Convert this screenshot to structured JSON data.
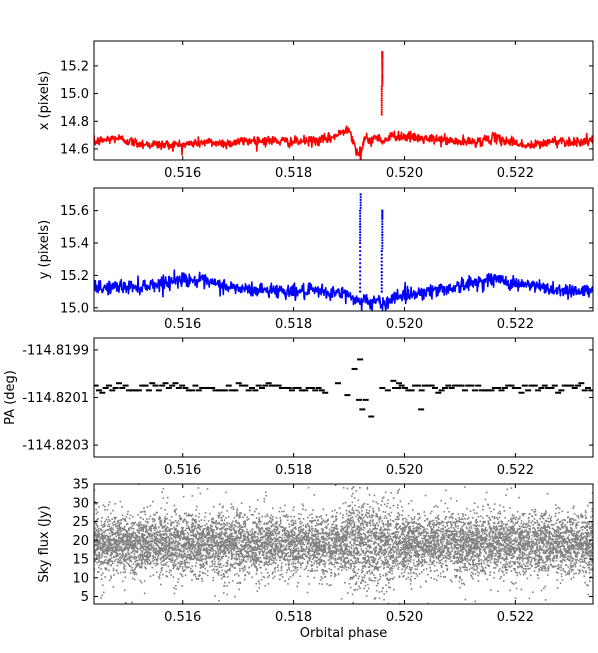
{
  "chart_data": [
    {
      "type": "line",
      "ylabel": "x  (pixels)",
      "xlabel": "",
      "xlim": [
        0.5144,
        0.5234
      ],
      "ylim": [
        14.52,
        15.38
      ],
      "xticks": [
        0.516,
        0.518,
        0.52,
        0.522
      ],
      "xtick_labels": [
        "0.516",
        "0.518",
        "0.520",
        "0.522"
      ],
      "yticks": [
        14.6,
        14.8,
        15.0,
        15.2
      ],
      "ytick_labels": [
        "14.6",
        "14.8",
        "15.0",
        "15.2"
      ],
      "grid": false,
      "series": [
        {
          "color": "#ff0000",
          "style": "line",
          "x": [
            0.5144,
            0.5148,
            0.5152,
            0.5156,
            0.516,
            0.5164,
            0.5168,
            0.5172,
            0.5176,
            0.518,
            0.5184,
            0.5186,
            0.5188,
            0.519,
            0.5191,
            0.5192,
            0.5193,
            0.5194,
            0.5195,
            0.5196,
            0.5197,
            0.5198,
            0.52,
            0.5202,
            0.5204,
            0.5206,
            0.5208,
            0.521,
            0.5212,
            0.5214,
            0.5216,
            0.5218,
            0.522,
            0.5222,
            0.5224,
            0.5226,
            0.5228,
            0.523,
            0.5234
          ],
          "y": [
            14.65,
            14.68,
            14.64,
            14.63,
            14.63,
            14.65,
            14.64,
            14.66,
            14.66,
            14.65,
            14.66,
            14.67,
            14.7,
            14.76,
            14.62,
            14.55,
            14.68,
            14.66,
            14.69,
            14.66,
            14.67,
            14.7,
            14.69,
            14.68,
            14.67,
            14.67,
            14.66,
            14.65,
            14.65,
            14.66,
            14.68,
            14.66,
            14.65,
            14.62,
            14.63,
            14.65,
            14.66,
            14.65,
            14.66
          ]
        },
        {
          "color": "#ff0000",
          "style": "points",
          "x": [
            0.5192,
            0.5192,
            0.5192,
            0.51921,
            0.51959,
            0.51959,
            0.51959,
            0.5196,
            0.5196,
            0.5196,
            0.5196
          ],
          "y": [
            14.55,
            14.58,
            14.61,
            14.53,
            14.85,
            14.95,
            15.05,
            15.12,
            15.2,
            15.26,
            15.3
          ]
        }
      ]
    },
    {
      "type": "line",
      "ylabel": "y  (pixels)",
      "xlabel": "",
      "xlim": [
        0.5144,
        0.5234
      ],
      "ylim": [
        14.98,
        15.74
      ],
      "xticks": [
        0.516,
        0.518,
        0.52,
        0.522
      ],
      "xtick_labels": [
        "0.516",
        "0.518",
        "0.520",
        "0.522"
      ],
      "yticks": [
        15.0,
        15.2,
        15.4,
        15.6
      ],
      "ytick_labels": [
        "15.0",
        "15.2",
        "15.4",
        "15.6"
      ],
      "grid": false,
      "series": [
        {
          "color": "#0000ff",
          "style": "line",
          "x": [
            0.5144,
            0.5148,
            0.5152,
            0.5156,
            0.516,
            0.5164,
            0.5168,
            0.5172,
            0.5176,
            0.518,
            0.5184,
            0.5188,
            0.519,
            0.5192,
            0.5193,
            0.5194,
            0.5195,
            0.5196,
            0.5197,
            0.5198,
            0.52,
            0.5204,
            0.5208,
            0.5212,
            0.5216,
            0.522,
            0.5224,
            0.5228,
            0.5234
          ],
          "y": [
            15.12,
            15.13,
            15.13,
            15.15,
            15.18,
            15.16,
            15.13,
            15.11,
            15.11,
            15.1,
            15.1,
            15.09,
            15.08,
            15.03,
            15.07,
            15.02,
            15.05,
            15.01,
            15.04,
            15.07,
            15.08,
            15.1,
            15.12,
            15.15,
            15.18,
            15.15,
            15.13,
            15.11,
            15.1
          ]
        },
        {
          "color": "#0000ff",
          "style": "points",
          "x": [
            0.5192,
            0.5192,
            0.5192,
            0.5192,
            0.5192,
            0.51921,
            0.51959,
            0.51959,
            0.51959,
            0.5196,
            0.5196,
            0.5196
          ],
          "y": [
            15.1,
            15.25,
            15.4,
            15.5,
            15.6,
            15.7,
            15.1,
            15.22,
            15.35,
            15.45,
            15.55,
            15.6
          ]
        }
      ]
    },
    {
      "type": "scatter",
      "ylabel": "PA  (deg)",
      "xlabel": "",
      "xlim": [
        0.5144,
        0.5234
      ],
      "ylim": [
        -114.82035,
        -114.81985
      ],
      "xticks": [
        0.516,
        0.518,
        0.52,
        0.522
      ],
      "xtick_labels": [
        "0.516",
        "0.518",
        "0.520",
        "0.522"
      ],
      "yticks": [
        -114.8199,
        -114.8201,
        -114.8203
      ],
      "ytick_labels": [
        "-114.8199",
        "-114.8201",
        "-114.8203"
      ],
      "grid": false,
      "marker": "dash",
      "series": [
        {
          "color": "#000000",
          "x": [
            0.5192,
            0.5191,
            0.51924,
            0.51918,
            0.5193,
            0.5194,
            0.5197,
            0.5198,
            0.5199,
            0.5203,
            0.5188,
            0.51897,
            0.5196
          ],
          "y": [
            -114.81994,
            -114.81998,
            -114.82015,
            -114.82011,
            -114.82011,
            -114.82018,
            -114.82007,
            -114.82003,
            -114.82004,
            -114.82015,
            -114.82004,
            -114.82009,
            -114.82006
          ]
        }
      ]
    },
    {
      "type": "scatter",
      "ylabel": "Sky flux  (Jy)",
      "xlabel": "Orbital phase",
      "xlim": [
        0.5144,
        0.5234
      ],
      "ylim": [
        3,
        35
      ],
      "xticks": [
        0.516,
        0.518,
        0.52,
        0.522
      ],
      "xtick_labels": [
        "0.516",
        "0.518",
        "0.520",
        "0.522"
      ],
      "yticks": [
        5,
        10,
        15,
        20,
        25,
        30,
        35
      ],
      "ytick_labels": [
        "5",
        "10",
        "15",
        "20",
        "25",
        "30",
        "35"
      ],
      "grid": false,
      "series": [
        {
          "color": "#808080",
          "mean": 19,
          "spread_1sigma": 4,
          "range": [
            3,
            35
          ]
        }
      ]
    }
  ]
}
